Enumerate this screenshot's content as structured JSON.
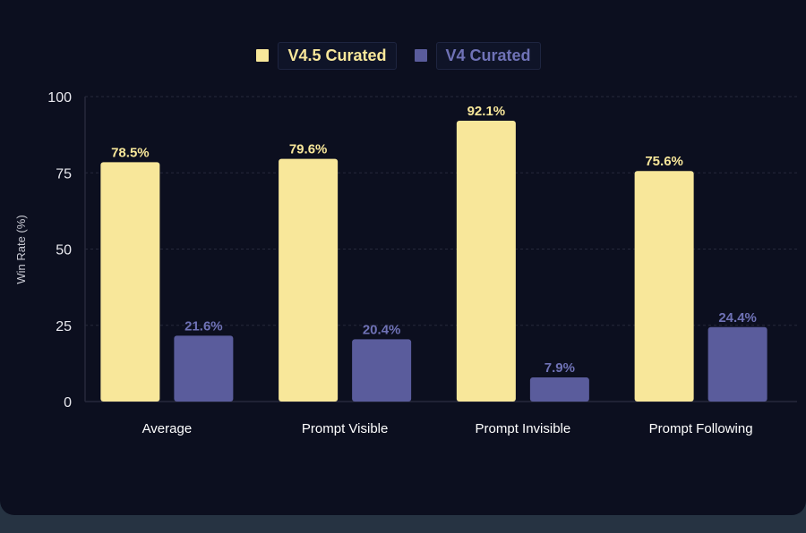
{
  "chart_data": {
    "type": "bar",
    "categories": [
      "Average",
      "Prompt Visible",
      "Prompt Invisible",
      "Prompt Following"
    ],
    "series": [
      {
        "name": "V4.5 Curated",
        "values": [
          78.5,
          79.6,
          92.1,
          75.6
        ],
        "color": "#f8e79a"
      },
      {
        "name": "V4 Curated",
        "values": [
          21.6,
          20.4,
          7.9,
          24.4
        ],
        "color": "#5a5c9c"
      }
    ],
    "value_labels": [
      [
        "78.5%",
        "79.6%",
        "92.1%",
        "75.6%"
      ],
      [
        "21.6%",
        "20.4%",
        "7.9%",
        "24.4%"
      ]
    ],
    "title": "",
    "xlabel": "",
    "ylabel": "Win Rate (%)",
    "ylim": [
      0,
      100
    ],
    "yticks": [
      0,
      25,
      50,
      75,
      100
    ],
    "ytick_labels": [
      "0",
      "25",
      "50",
      "75",
      "100"
    ],
    "grid": true,
    "legend_position": "top-center"
  },
  "colors": {
    "background": "#0c0f1f",
    "grid": "#26293b",
    "series1_label": "#f8e79a",
    "series2_label": "#6f72b6"
  }
}
